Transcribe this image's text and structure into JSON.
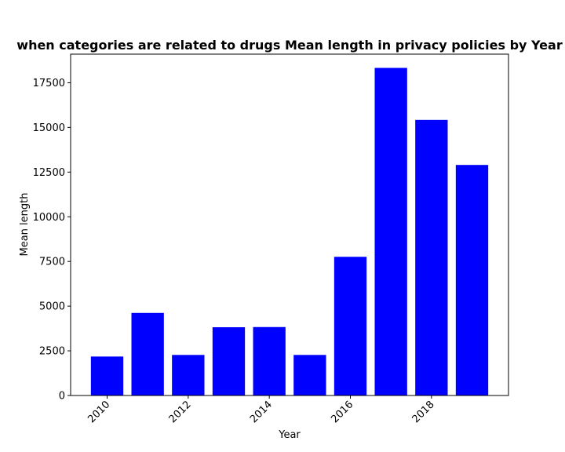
{
  "chart_data": {
    "type": "bar",
    "title": "when categories are related to drugs Mean length in privacy policies by Year",
    "xlabel": "Year",
    "ylabel": "Mean length",
    "x": [
      2010,
      2011,
      2012,
      2013,
      2014,
      2015,
      2016,
      2017,
      2018,
      2019
    ],
    "values": [
      2180,
      4620,
      2270,
      3820,
      3830,
      2270,
      7760,
      18330,
      15420,
      12900
    ],
    "xlim": [
      2009.1,
      2019.9
    ],
    "ylim": [
      0,
      19100
    ],
    "xticks": [
      2010,
      2012,
      2014,
      2016,
      2018
    ],
    "xtick_labels": [
      "2010",
      "2012",
      "2014",
      "2016",
      "2018"
    ],
    "yticks": [
      0,
      2500,
      5000,
      7500,
      10000,
      12500,
      15000,
      17500
    ],
    "ytick_labels": [
      "0",
      "2500",
      "5000",
      "7500",
      "10000",
      "12500",
      "15000",
      "17500"
    ],
    "grid": false,
    "bar_color": "#0000ff",
    "bar_width": 0.8
  }
}
